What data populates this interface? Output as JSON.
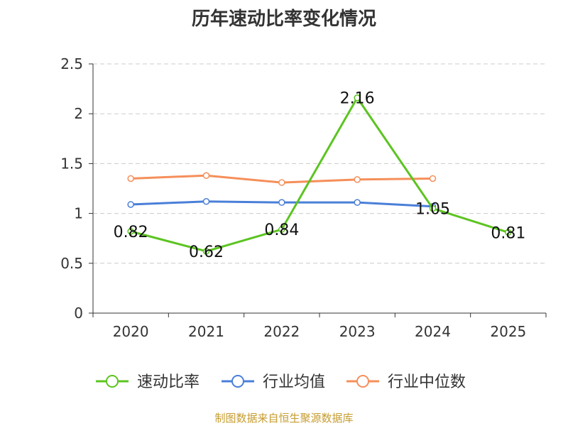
{
  "chart_data": {
    "type": "line",
    "title": "历年速动比率变化情况",
    "categories": [
      "2020",
      "2021",
      "2022",
      "2023",
      "2024",
      "2025"
    ],
    "ylim": [
      0,
      2.5
    ],
    "yticks": [
      "0",
      "0.5",
      "1",
      "1.5",
      "2",
      "2.5"
    ],
    "ytick_values": [
      0,
      0.5,
      1,
      1.5,
      2,
      2.5
    ],
    "grid": "horizontal-dashed",
    "legend_position": "bottom",
    "series": [
      {
        "name": "速动比率",
        "color": "#5cc421",
        "values": [
          0.82,
          0.62,
          0.84,
          2.16,
          1.05,
          0.81
        ],
        "labels": [
          "0.82",
          "0.62",
          "0.84",
          "2.16",
          "1.05",
          "0.81"
        ]
      },
      {
        "name": "行业均值",
        "color": "#4a7fd8",
        "values": [
          1.09,
          1.12,
          1.11,
          1.11,
          1.07,
          null
        ]
      },
      {
        "name": "行业中位数",
        "color": "#f58f5a",
        "values": [
          1.35,
          1.38,
          1.31,
          1.34,
          1.35,
          null
        ]
      }
    ]
  },
  "footer": {
    "source": "制图数据来自恒生聚源数据库"
  }
}
